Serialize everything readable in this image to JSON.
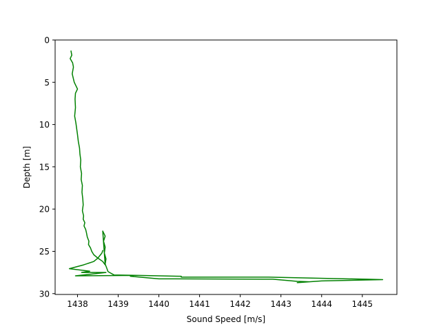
{
  "chart_data": {
    "type": "line",
    "title": "",
    "xlabel": "Sound Speed [m/s]",
    "ylabel": "Depth [m]",
    "xlim": [
      1437.45,
      1445.85
    ],
    "ylim": [
      30.1,
      0
    ],
    "y_inverted": true,
    "grid": false,
    "legend": "none",
    "xticks": [
      {
        "value": 1438,
        "label": "1438"
      },
      {
        "value": 1439,
        "label": "1439"
      },
      {
        "value": 1440,
        "label": "1440"
      },
      {
        "value": 1441,
        "label": "1441"
      },
      {
        "value": 1442,
        "label": "1442"
      },
      {
        "value": 1443,
        "label": "1443"
      },
      {
        "value": 1444,
        "label": "1444"
      },
      {
        "value": 1445,
        "label": "1445"
      }
    ],
    "yticks": [
      {
        "value": 0,
        "label": "0"
      },
      {
        "value": 5,
        "label": "5"
      },
      {
        "value": 10,
        "label": "10"
      },
      {
        "value": 15,
        "label": "15"
      },
      {
        "value": 20,
        "label": "20"
      },
      {
        "value": 25,
        "label": "25"
      },
      {
        "value": 30,
        "label": "30"
      }
    ],
    "series": [
      {
        "color": "#008000",
        "x": [
          1437.84,
          1437.86,
          1437.82,
          1437.88,
          1437.9,
          1437.87,
          1437.92,
          1437.97,
          1438.0,
          1437.95,
          1437.94,
          1437.95,
          1437.93,
          1437.96,
          1437.98,
          1438.0,
          1438.02,
          1438.05,
          1438.06,
          1438.08,
          1438.07,
          1438.1,
          1438.09,
          1438.12,
          1438.11,
          1438.13,
          1438.14,
          1438.12,
          1438.15,
          1438.14,
          1438.18,
          1438.16,
          1438.2,
          1438.22,
          1438.24,
          1438.28,
          1438.27,
          1438.32,
          1438.35,
          1438.4,
          1438.5,
          1438.62,
          1438.68,
          1438.62,
          1438.68,
          1438.64,
          1438.68,
          1438.66,
          1438.7,
          1438.68,
          1438.72,
          1438.75,
          1438.9,
          1439.5,
          1440.0,
          1440.55,
          1440.55,
          1442.7,
          1445.1,
          1445.5,
          1444.0,
          1443.4,
          1443.7,
          1443.4,
          1442.8,
          1440.0,
          1439.3,
          1439.4,
          1437.95,
          1438.7,
          1438.1,
          1438.3,
          1437.8,
          1438.15,
          1438.4,
          1438.5,
          1438.55,
          1438.6,
          1438.62
        ],
        "y": [
          1.3,
          1.8,
          2.2,
          2.7,
          3.2,
          4.0,
          5.0,
          5.5,
          5.8,
          6.3,
          7.0,
          8.0,
          9.0,
          9.8,
          10.5,
          11.2,
          12.0,
          12.8,
          13.5,
          14.2,
          15.0,
          15.8,
          16.5,
          17.2,
          18.0,
          18.8,
          19.5,
          20.2,
          20.8,
          21.2,
          21.6,
          22.0,
          22.4,
          22.8,
          23.3,
          23.8,
          24.2,
          24.6,
          25.0,
          25.4,
          25.8,
          26.2,
          26.6,
          22.6,
          23.2,
          23.8,
          24.5,
          25.2,
          25.9,
          26.5,
          27.0,
          27.4,
          27.8,
          27.85,
          27.9,
          27.95,
          28.05,
          28.05,
          28.3,
          28.35,
          28.5,
          28.7,
          28.6,
          28.55,
          28.3,
          28.25,
          27.95,
          27.85,
          27.9,
          27.5,
          27.5,
          27.35,
          27.05,
          26.6,
          26.2,
          25.8,
          25.5,
          25.2,
          24.9
        ]
      }
    ]
  }
}
